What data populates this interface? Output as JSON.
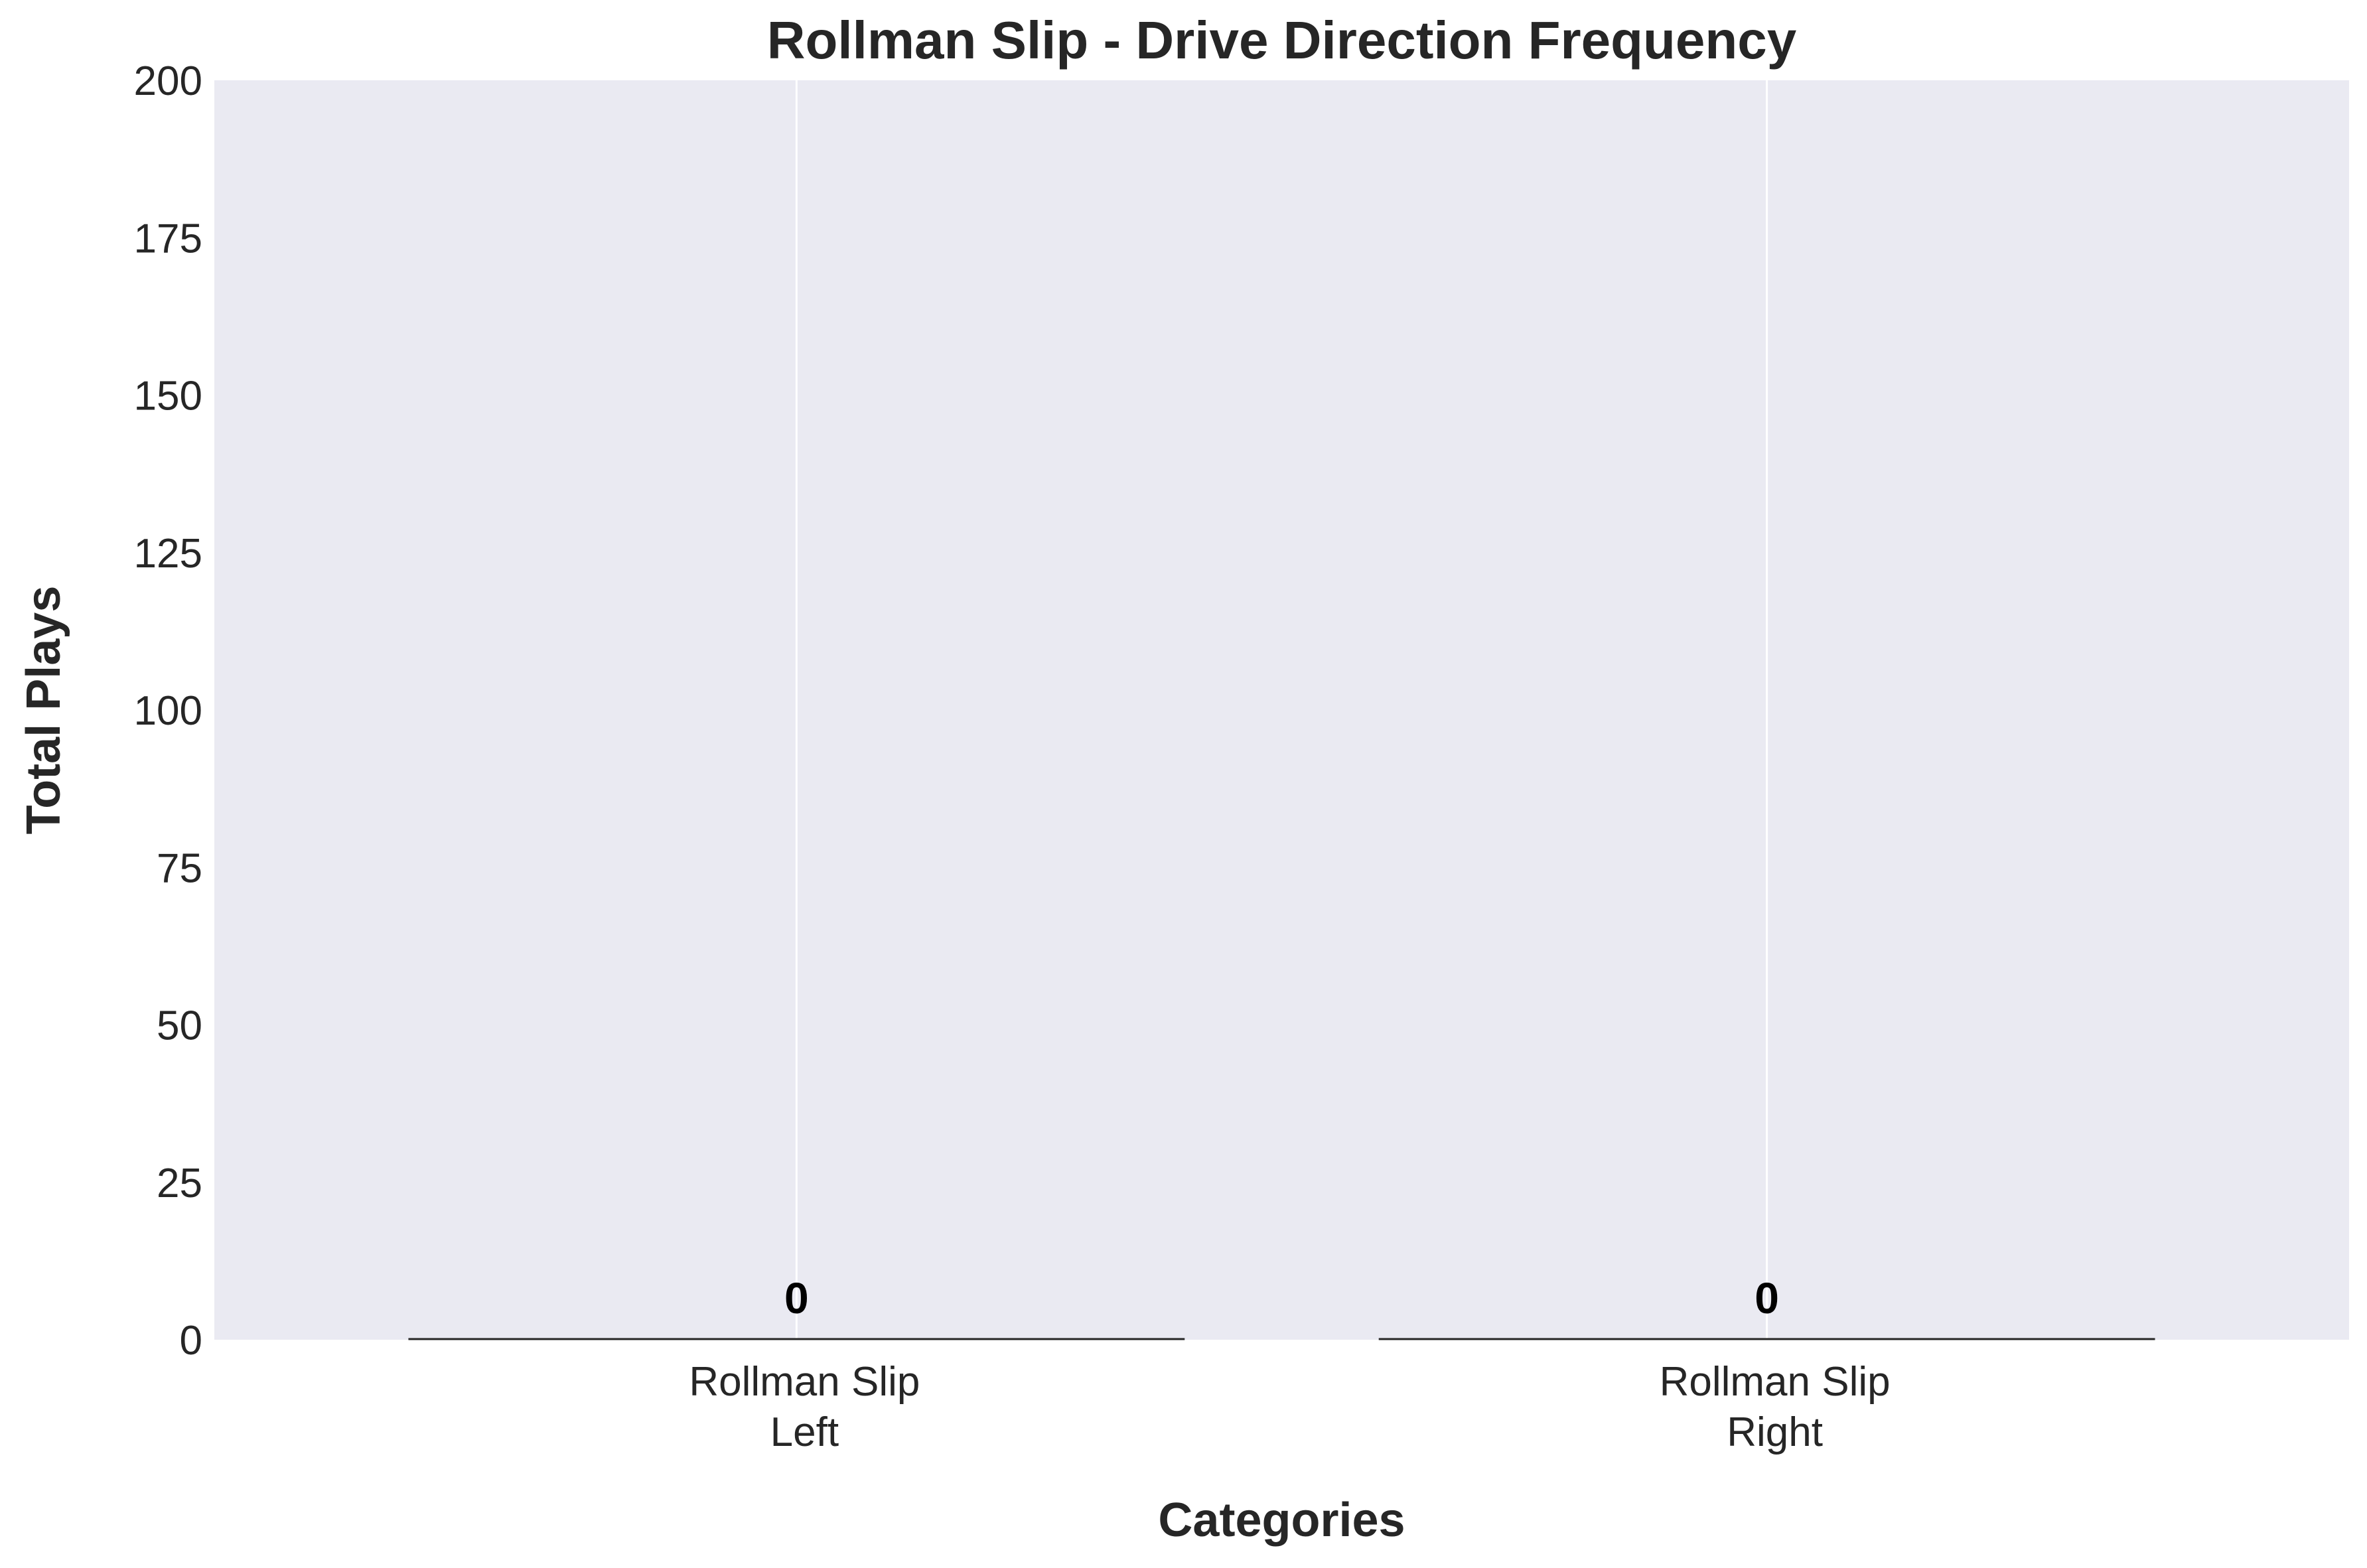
{
  "chart_data": {
    "type": "bar",
    "title": "Rollman Slip - Drive Direction Frequency",
    "xlabel": "Categories",
    "ylabel": "Total Plays",
    "categories": [
      [
        "Rollman Slip",
        "Left"
      ],
      [
        "Rollman Slip",
        "Right"
      ]
    ],
    "values": [
      0,
      0
    ],
    "data_labels": [
      "0",
      "0"
    ],
    "ylim": [
      0,
      200
    ],
    "yticks": [
      0,
      25,
      50,
      75,
      100,
      125,
      150,
      175,
      200
    ],
    "ytick_labels": [
      "0",
      "25",
      "50",
      "75",
      "100",
      "125",
      "150",
      "175",
      "200"
    ],
    "grid": true,
    "grid_axis": "x",
    "legend": "none",
    "colors": {
      "plot_background": "#eaeaf2",
      "grid": "#ffffff",
      "bar_edge": "#262626",
      "text": "#262626"
    }
  }
}
